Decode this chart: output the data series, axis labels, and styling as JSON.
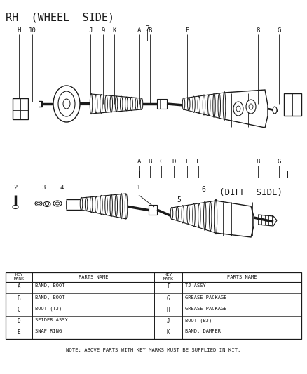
{
  "title": "RH  (WHEEL  SIDE)",
  "diff_side_label": "(DIFF  SIDE)",
  "note": "NOTE: ABOVE PARTS WITH KEY MARKS MUST BE SUPPLIED IN KIT.",
  "bg_color": "#ffffff",
  "lc": "#1a1a1a",
  "table_rows": [
    [
      "A",
      "BAND, BOOT",
      "F",
      "TJ ASSY"
    ],
    [
      "B",
      "BAND, BOOT",
      "G",
      "GREASE PACKAGE"
    ],
    [
      "C",
      "BOOT (TJ)",
      "H",
      "GREASE PACKAGE"
    ],
    [
      "D",
      "SPIDER ASSY",
      "J",
      "BOOT (BJ)"
    ],
    [
      "E",
      "SNAP RING",
      "K",
      "BAND, DAMPER"
    ]
  ],
  "upper_tick_labels": [
    [
      "H",
      0.06
    ],
    [
      "10",
      0.105
    ],
    [
      "J",
      0.295
    ],
    [
      "9",
      0.335
    ],
    [
      "K",
      0.372
    ],
    [
      "A",
      0.455
    ],
    [
      "B",
      0.49
    ],
    [
      "E",
      0.61
    ],
    [
      "8",
      0.84
    ],
    [
      "G",
      0.91
    ]
  ],
  "lower_tick_labels": [
    [
      "A",
      0.455
    ],
    [
      "B",
      0.49
    ],
    [
      "C",
      0.525
    ],
    [
      "D",
      0.562
    ],
    [
      "E",
      0.61
    ],
    [
      "F",
      0.648
    ],
    [
      "8",
      0.84
    ],
    [
      "G",
      0.91
    ]
  ]
}
